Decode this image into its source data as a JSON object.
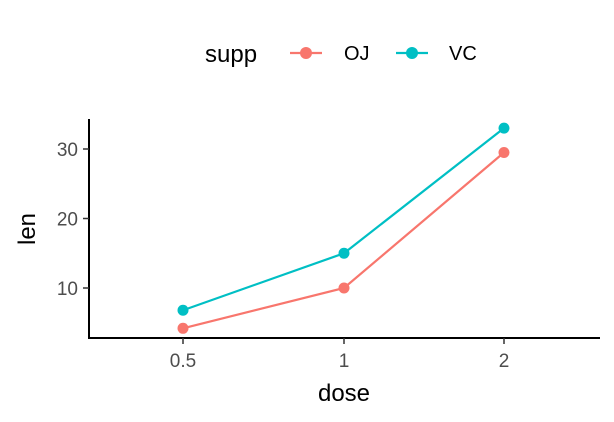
{
  "chart_data": {
    "type": "line",
    "categories": [
      "0.5",
      "1",
      "2"
    ],
    "series": [
      {
        "name": "OJ",
        "values": [
          4.2,
          10.0,
          29.5
        ],
        "color": "#F8766D"
      },
      {
        "name": "VC",
        "values": [
          6.8,
          15.0,
          33.0
        ],
        "color": "#00BFC4"
      }
    ],
    "title": "",
    "xlabel": "dose",
    "ylabel": "len",
    "ylim": [
      3,
      34
    ],
    "yticks": [
      "10",
      "20",
      "30"
    ],
    "grid": false,
    "legend": {
      "title": "supp",
      "placement": "top"
    }
  }
}
